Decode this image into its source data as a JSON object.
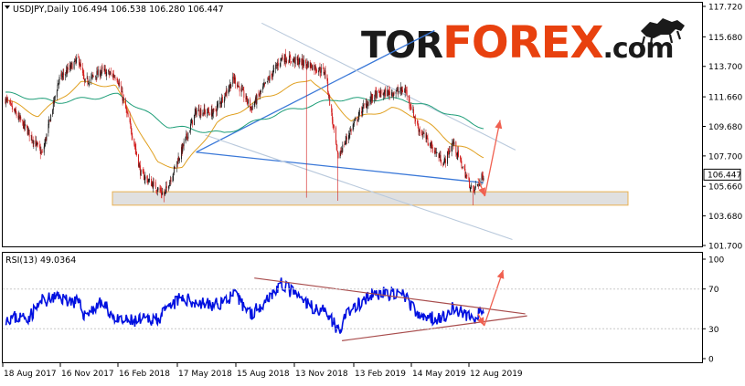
{
  "header": {
    "symbol_info": "USDJPY,Daily  106.494 106.538 106.280 106.447",
    "rsi_info": "RSI(13) 49.0364"
  },
  "logo": {
    "tor": "TOR",
    "forex": "FOREX",
    "com": ".com",
    "colors": {
      "tor": "#1a1a1a",
      "forex": "#e8410f",
      "com": "#1a1a1a"
    }
  },
  "colors": {
    "up_candle": "#1a1a1a",
    "down_candle": "#d11a1a",
    "ma_fast": "#e0a020",
    "ma_slow": "#1e9e78",
    "trendline": "#3a78d8",
    "channel": "#b9c9dc",
    "arrow": "#f06050",
    "rsi_line": "#0010e0",
    "rsi_trend": "#a84c4c",
    "support_zone": "#e0e0e0",
    "support_border": "#e8b050",
    "grid_border": "#000000",
    "price_tag_bg": "#ffffff"
  },
  "chart_data": [
    {
      "type": "candlestick",
      "title": "USDJPY,Daily",
      "series_name": "USDJPY",
      "ylim": [
        101.7,
        117.72
      ],
      "yticks": [
        117.72,
        115.68,
        113.7,
        111.66,
        109.68,
        107.7,
        105.66,
        103.68,
        101.7
      ],
      "ytick_labels": [
        "117.720",
        "115.680",
        "113.700",
        "111.660",
        "109.680",
        "107.700",
        "105.660",
        "103.680",
        "101.700"
      ],
      "current_price": 106.447,
      "current_price_label": "106.447",
      "x_dates": [
        "18 Aug 2017",
        "16 Nov 2017",
        "16 Feb 2018",
        "17 May 2018",
        "15 Aug 2018",
        "13 Nov 2018",
        "13 Feb 2019",
        "14 May 2019",
        "12 Aug 2019"
      ],
      "price_path": [
        {
          "date": "2017-07-10",
          "close": 111.5
        },
        {
          "date": "2017-08-18",
          "close": 109.2
        },
        {
          "date": "2017-09-08",
          "close": 107.8
        },
        {
          "date": "2017-10-05",
          "close": 112.8
        },
        {
          "date": "2017-11-06",
          "close": 114.2
        },
        {
          "date": "2017-11-16",
          "close": 112.6
        },
        {
          "date": "2017-12-14",
          "close": 113.4
        },
        {
          "date": "2018-01-08",
          "close": 113.0
        },
        {
          "date": "2018-02-01",
          "close": 109.3
        },
        {
          "date": "2018-02-16",
          "close": 106.5
        },
        {
          "date": "2018-03-26",
          "close": 105.1
        },
        {
          "date": "2018-04-20",
          "close": 107.7
        },
        {
          "date": "2018-05-17",
          "close": 110.7
        },
        {
          "date": "2018-06-15",
          "close": 110.6
        },
        {
          "date": "2018-07-18",
          "close": 112.9
        },
        {
          "date": "2018-08-15",
          "close": 110.9
        },
        {
          "date": "2018-10-04",
          "close": 114.3
        },
        {
          "date": "2018-11-13",
          "close": 113.9
        },
        {
          "date": "2018-12-14",
          "close": 113.3
        },
        {
          "date": "2019-01-03",
          "close": 107.6
        },
        {
          "date": "2019-01-25",
          "close": 109.5
        },
        {
          "date": "2019-02-13",
          "close": 110.9
        },
        {
          "date": "2019-03-05",
          "close": 111.8
        },
        {
          "date": "2019-04-24",
          "close": 112.1
        },
        {
          "date": "2019-05-14",
          "close": 109.6
        },
        {
          "date": "2019-06-25",
          "close": 107.2
        },
        {
          "date": "2019-07-10",
          "close": 108.6
        },
        {
          "date": "2019-08-05",
          "close": 105.9
        },
        {
          "date": "2019-08-12",
          "close": 105.3
        },
        {
          "date": "2019-08-29",
          "close": 106.447
        }
      ],
      "moving_averages": [
        {
          "name": "MA fast",
          "color": "#e0a020",
          "values": [
            {
              "date": "2017-07-10",
              "value": 111.5
            },
            {
              "date": "2017-09-01",
              "value": 110.4
            },
            {
              "date": "2017-11-10",
              "value": 112.6
            },
            {
              "date": "2018-01-05",
              "value": 112.4
            },
            {
              "date": "2018-03-15",
              "value": 107.2
            },
            {
              "date": "2018-04-25",
              "value": 106.9
            },
            {
              "date": "2018-06-20",
              "value": 109.9
            },
            {
              "date": "2018-09-05",
              "value": 111.6
            },
            {
              "date": "2018-11-20",
              "value": 112.9
            },
            {
              "date": "2019-01-25",
              "value": 110.1
            },
            {
              "date": "2019-04-01",
              "value": 110.9
            },
            {
              "date": "2019-05-20",
              "value": 110.2
            },
            {
              "date": "2019-07-10",
              "value": 108.5
            },
            {
              "date": "2019-08-29",
              "value": 107.7
            }
          ]
        },
        {
          "name": "MA slow",
          "color": "#1e9e78",
          "values": [
            {
              "date": "2017-07-10",
              "value": 111.9
            },
            {
              "date": "2017-10-01",
              "value": 111.3
            },
            {
              "date": "2018-01-10",
              "value": 111.8
            },
            {
              "date": "2018-04-01",
              "value": 109.7
            },
            {
              "date": "2018-07-01",
              "value": 109.2
            },
            {
              "date": "2018-10-01",
              "value": 110.6
            },
            {
              "date": "2019-01-01",
              "value": 111.5
            },
            {
              "date": "2019-04-20",
              "value": 111.5
            },
            {
              "date": "2019-07-01",
              "value": 110.6
            },
            {
              "date": "2019-08-29",
              "value": 109.6
            }
          ]
        }
      ],
      "drawings": [
        {
          "kind": "trendline",
          "from": {
            "date": "2018-05-17",
            "value": 107.95
          },
          "to": {
            "date": "2019-08-29",
            "value": 105.9
          }
        },
        {
          "kind": "trendline",
          "from": {
            "date": "2018-05-17",
            "value": 107.95
          },
          "to": {
            "date": "2019-06-10",
            "value": 116.1
          }
        },
        {
          "kind": "channel",
          "from": {
            "date": "2018-09-01",
            "value": 116.6
          },
          "to": {
            "date": "2019-10-20",
            "value": 108.1
          }
        },
        {
          "kind": "channel",
          "from": {
            "date": "2018-06-01",
            "value": 109.1
          },
          "to": {
            "date": "2019-10-15",
            "value": 102.1
          }
        },
        {
          "kind": "arrow",
          "from": {
            "date": "2019-08-20",
            "value": 106.2
          },
          "to": {
            "date": "2019-08-31",
            "value": 105.0
          }
        },
        {
          "kind": "arrow",
          "from": {
            "date": "2019-08-31",
            "value": 105.0
          },
          "to": {
            "date": "2019-09-25",
            "value": 110.1
          }
        },
        {
          "kind": "zone",
          "from": {
            "date": "2017-11-01",
            "value": 105.3
          },
          "to": {
            "date": "2019-10-10",
            "value": 104.4
          }
        }
      ]
    },
    {
      "type": "line",
      "title": "RSI(13) 49.0364",
      "series_name": "RSI(13)",
      "ylim": [
        0,
        100
      ],
      "yticks": [
        100,
        70,
        30,
        0
      ],
      "ytick_labels": [
        "100",
        "70",
        "30",
        "0"
      ],
      "series": [
        {
          "name": "RSI(13)",
          "values": [
            {
              "date": "2017-07-10",
              "value": 41
            },
            {
              "date": "2017-08-18",
              "value": 42
            },
            {
              "date": "2017-09-08",
              "value": 58
            },
            {
              "date": "2017-10-05",
              "value": 62
            },
            {
              "date": "2017-11-06",
              "value": 56
            },
            {
              "date": "2017-11-16",
              "value": 44
            },
            {
              "date": "2017-12-14",
              "value": 56
            },
            {
              "date": "2018-01-10",
              "value": 37
            },
            {
              "date": "2018-02-16",
              "value": 38
            },
            {
              "date": "2018-03-20",
              "value": 42
            },
            {
              "date": "2018-04-20",
              "value": 60
            },
            {
              "date": "2018-05-17",
              "value": 57
            },
            {
              "date": "2018-06-15",
              "value": 53
            },
            {
              "date": "2018-07-18",
              "value": 64
            },
            {
              "date": "2018-08-15",
              "value": 45
            },
            {
              "date": "2018-10-04",
              "value": 75
            },
            {
              "date": "2018-11-13",
              "value": 55
            },
            {
              "date": "2018-12-20",
              "value": 45
            },
            {
              "date": "2019-01-03",
              "value": 28
            },
            {
              "date": "2019-01-25",
              "value": 50
            },
            {
              "date": "2019-02-13",
              "value": 57
            },
            {
              "date": "2019-03-05",
              "value": 66
            },
            {
              "date": "2019-04-24",
              "value": 63
            },
            {
              "date": "2019-05-14",
              "value": 42
            },
            {
              "date": "2019-06-10",
              "value": 41
            },
            {
              "date": "2019-06-25",
              "value": 42
            },
            {
              "date": "2019-07-10",
              "value": 51
            },
            {
              "date": "2019-08-05",
              "value": 42
            },
            {
              "date": "2019-08-12",
              "value": 40
            },
            {
              "date": "2019-08-29",
              "value": 49.04
            }
          ]
        }
      ],
      "drawings": [
        {
          "kind": "trendline",
          "from": {
            "date": "2018-08-20",
            "value": 81
          },
          "to": {
            "date": "2019-11-05",
            "value": 45
          }
        },
        {
          "kind": "trendline",
          "from": {
            "date": "2019-01-10",
            "value": 18
          },
          "to": {
            "date": "2019-11-08",
            "value": 43
          }
        },
        {
          "kind": "arrow",
          "from": {
            "date": "2019-08-20",
            "value": 45
          },
          "to": {
            "date": "2019-08-30",
            "value": 33
          }
        },
        {
          "kind": "arrow",
          "from": {
            "date": "2019-08-30",
            "value": 33
          },
          "to": {
            "date": "2019-09-30",
            "value": 89
          }
        }
      ]
    }
  ]
}
